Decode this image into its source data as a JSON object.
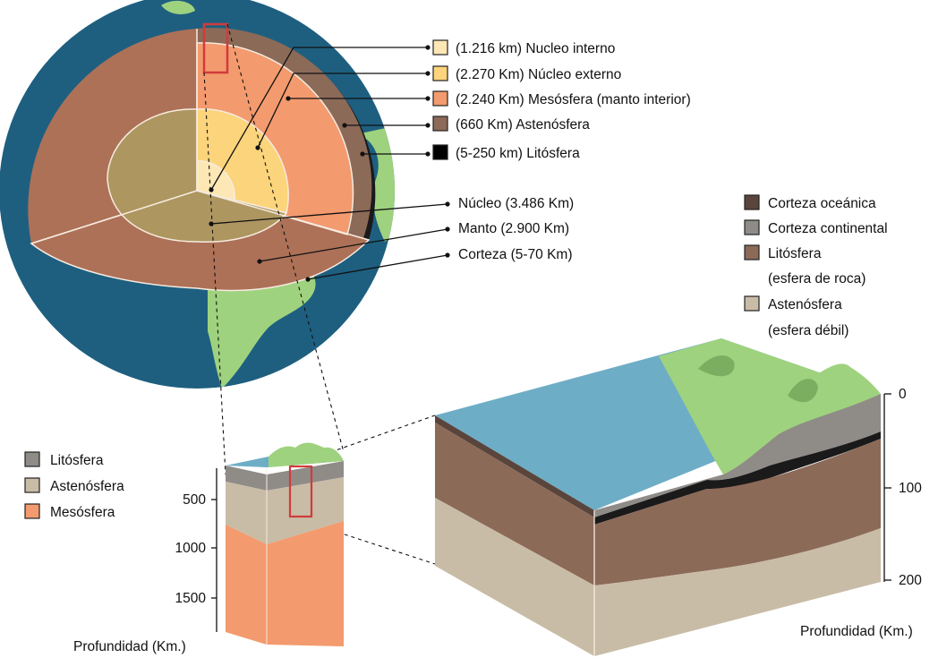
{
  "globe_layers_legend": [
    {
      "text": "(1.216 km) Nucleo interno",
      "color": "#fde7b4"
    },
    {
      "text": "(2.270 Km) Núcleo externo",
      "color": "#fcd47b"
    },
    {
      "text": "(2.240 Km) Mesósfera (manto interior)",
      "color": "#f39a6e"
    },
    {
      "text": "(660 Km) Astenósfera",
      "color": "#8c6a58"
    },
    {
      "text": "(5-250 km) Litósfera",
      "color": "#000000"
    }
  ],
  "globe_zone_labels": [
    {
      "text": "Núcleo (3.486 Km)"
    },
    {
      "text": "Manto (2.900 Km)"
    },
    {
      "text": "Corteza (5-70 Km)"
    }
  ],
  "crust_legend": {
    "items": [
      {
        "lines": [
          "Corteza oceánica"
        ],
        "color": "#5a453c"
      },
      {
        "lines": [
          "Corteza continental"
        ],
        "color": "#8f8c88"
      },
      {
        "lines": [
          "Litósfera",
          "(esfera de roca)"
        ],
        "color": "#8c6a58"
      },
      {
        "lines": [
          "Astenósfera",
          "(esfera débil)"
        ],
        "color": "#c8bca6"
      }
    ]
  },
  "column_legend": [
    {
      "text": "Litósfera",
      "color": "#8f8c88"
    },
    {
      "text": "Astenósfera",
      "color": "#c8bca6"
    },
    {
      "text": "Mesósfera",
      "color": "#f39a6e"
    }
  ],
  "column_axis": {
    "ticks": [
      "500",
      "1000",
      "1500"
    ],
    "label": "Profundidad (Km.)"
  },
  "block_axis": {
    "ticks": [
      "0",
      "100",
      "200"
    ],
    "label": "Profundidad (Km.)"
  },
  "colors": {
    "ocean": "#1e5f80",
    "land": "#9fd27e",
    "sea": "#6eadc6",
    "crust_ring": "#b07055",
    "inner_core": "#fde7b4",
    "outer_core": "#fcd47b",
    "core_cut": "#ae9660",
    "mesosphere": "#f39a6e",
    "mantle_cut": "#ad7158",
    "lithosphere": "#8c6a58",
    "asthenosphere": "#c8bca6",
    "continental_crust": "#8f8c88",
    "oceanic_crust": "#5a453c",
    "highlight_box": "#d23b3b"
  }
}
